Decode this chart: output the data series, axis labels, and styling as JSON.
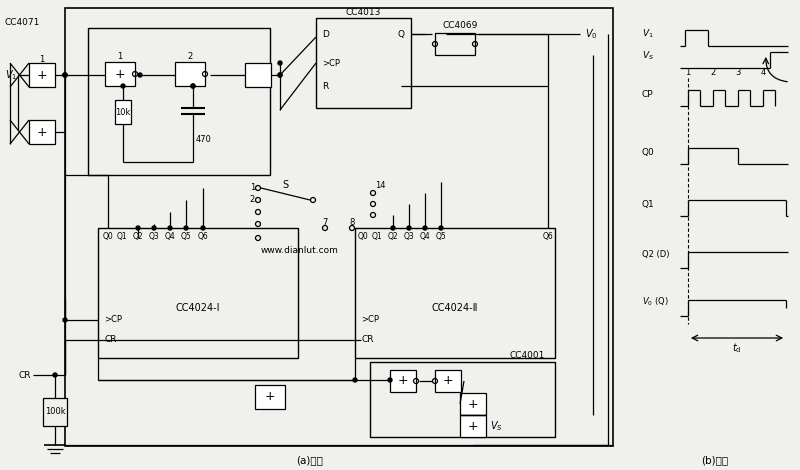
{
  "bg_color": "#f0f0ec",
  "line_color": "#1a1a1a",
  "title_a": "(a)电路",
  "title_b": "(b)波形",
  "watermark": "www.dianlut.com"
}
